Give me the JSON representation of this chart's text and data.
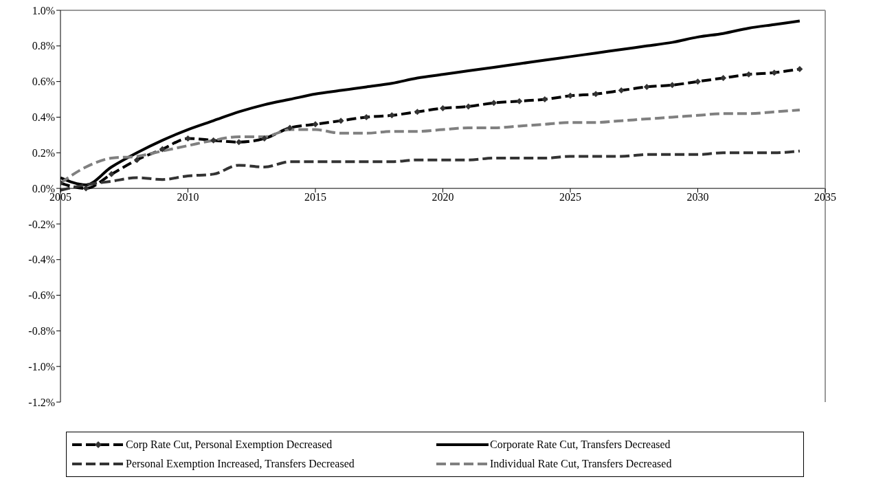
{
  "chart_data": {
    "type": "line",
    "x": [
      2005,
      2006,
      2007,
      2008,
      2009,
      2010,
      2011,
      2012,
      2013,
      2014,
      2015,
      2016,
      2017,
      2018,
      2019,
      2020,
      2021,
      2022,
      2023,
      2024,
      2025,
      2026,
      2027,
      2028,
      2029,
      2030,
      2031,
      2032,
      2033,
      2034
    ],
    "series": [
      {
        "name": "Corp Rate Cut, Personal Exemption Decreased",
        "color": "#000000",
        "line_style": "dashed",
        "marker": "diamond",
        "values": [
          0.03,
          0.0,
          0.08,
          0.16,
          0.22,
          0.28,
          0.27,
          0.26,
          0.28,
          0.34,
          0.36,
          0.38,
          0.4,
          0.41,
          0.43,
          0.45,
          0.46,
          0.48,
          0.49,
          0.5,
          0.52,
          0.53,
          0.55,
          0.57,
          0.58,
          0.6,
          0.62,
          0.64,
          0.65,
          0.67
        ]
      },
      {
        "name": "Corporate Rate Cut, Transfers Decreased",
        "color": "#000000",
        "line_style": "solid",
        "marker": "none",
        "values": [
          0.06,
          0.02,
          0.12,
          0.2,
          0.27,
          0.33,
          0.38,
          0.43,
          0.47,
          0.5,
          0.53,
          0.55,
          0.57,
          0.59,
          0.62,
          0.64,
          0.66,
          0.68,
          0.7,
          0.72,
          0.74,
          0.76,
          0.78,
          0.8,
          0.82,
          0.85,
          0.87,
          0.9,
          0.92,
          0.94
        ]
      },
      {
        "name": "Personal Exemption Increased, Transfers Decreased",
        "color": "#333333",
        "line_style": "dashed",
        "marker": "none",
        "values": [
          -0.01,
          0.02,
          0.04,
          0.06,
          0.05,
          0.07,
          0.08,
          0.13,
          0.12,
          0.15,
          0.15,
          0.15,
          0.15,
          0.15,
          0.16,
          0.16,
          0.16,
          0.17,
          0.17,
          0.17,
          0.18,
          0.18,
          0.18,
          0.19,
          0.19,
          0.19,
          0.2,
          0.2,
          0.2,
          0.21
        ]
      },
      {
        "name": "Individual Rate Cut, Transfers Decreased",
        "color": "#808080",
        "line_style": "dashed",
        "marker": "none",
        "values": [
          0.03,
          0.12,
          0.17,
          0.18,
          0.21,
          0.24,
          0.27,
          0.29,
          0.29,
          0.33,
          0.33,
          0.31,
          0.31,
          0.32,
          0.32,
          0.33,
          0.34,
          0.34,
          0.35,
          0.36,
          0.37,
          0.37,
          0.38,
          0.39,
          0.4,
          0.41,
          0.42,
          0.42,
          0.43,
          0.44
        ]
      }
    ],
    "xlim": [
      2005,
      2035
    ],
    "xticks": [
      2005,
      2010,
      2015,
      2020,
      2025,
      2030,
      2035
    ],
    "ylim": [
      -1.2,
      1.0
    ],
    "yticks": [
      {
        "value": -1.2,
        "label": "-1.2%"
      },
      {
        "value": -1.0,
        "label": "-1.0%"
      },
      {
        "value": -0.8,
        "label": "-0.8%"
      },
      {
        "value": -0.6,
        "label": "-0.6%"
      },
      {
        "value": -0.4,
        "label": "-0.4%"
      },
      {
        "value": -0.2,
        "label": "-0.2%"
      },
      {
        "value": 0,
        "label": "0.0%"
      },
      {
        "value": 0.2,
        "label": "0.2%"
      },
      {
        "value": 0.4,
        "label": "0.4%"
      },
      {
        "value": 0.6,
        "label": "0.6%"
      },
      {
        "value": 0.8,
        "label": "0.8%"
      },
      {
        "value": 1.0,
        "label": "1.0%"
      }
    ],
    "grid": false,
    "legend": "bottom"
  }
}
